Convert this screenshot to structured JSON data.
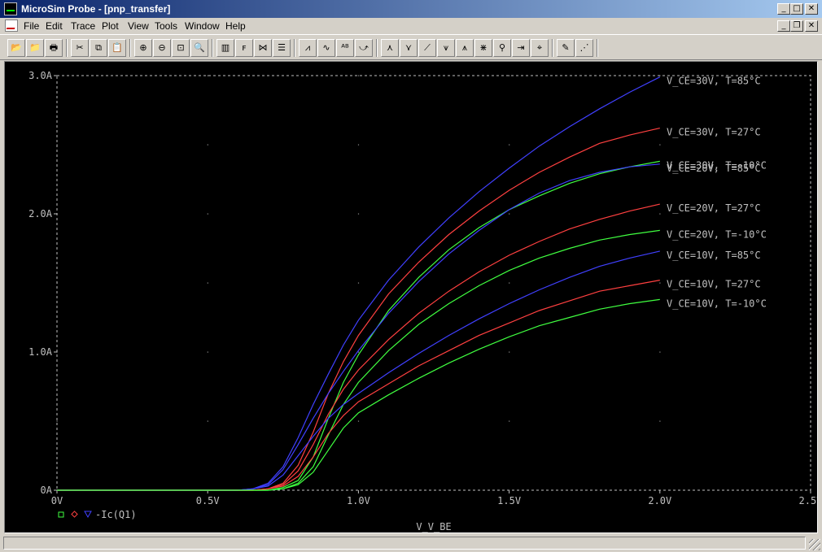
{
  "window": {
    "title": "MicroSim Probe - [pnp_transfer]",
    "controls": {
      "minimize": "_",
      "maximize": "□",
      "close": "✕",
      "restore": "❐"
    }
  },
  "menu": [
    "File",
    "Edit",
    "Trace",
    "Plot",
    "View",
    "Tools",
    "Window",
    "Help"
  ],
  "toolbar": {
    "groups": [
      [
        {
          "icon": "open-folder-icon",
          "glyph": "📂"
        },
        {
          "icon": "append-icon",
          "glyph": "📁"
        },
        {
          "icon": "print-icon",
          "glyph": "🖶"
        }
      ],
      [
        {
          "icon": "cut-icon",
          "glyph": "✂"
        },
        {
          "icon": "copy-icon",
          "glyph": "⧉"
        },
        {
          "icon": "paste-icon",
          "glyph": "📋"
        }
      ],
      [
        {
          "icon": "zoom-in-icon",
          "glyph": "⊕"
        },
        {
          "icon": "zoom-out-icon",
          "glyph": "⊖"
        },
        {
          "icon": "zoom-area-icon",
          "glyph": "⊡"
        },
        {
          "icon": "zoom-fit-icon",
          "glyph": "🔍"
        }
      ],
      [
        {
          "icon": "log-x-icon",
          "glyph": "▥"
        },
        {
          "icon": "fft-icon",
          "glyph": "ꜰ"
        },
        {
          "icon": "performance-icon",
          "glyph": "⋈"
        },
        {
          "icon": "list-icon",
          "glyph": "☰"
        }
      ],
      [
        {
          "icon": "add-trace-icon",
          "glyph": "⩘"
        },
        {
          "icon": "eval-goal-icon",
          "glyph": "∿"
        },
        {
          "icon": "mark-label-icon",
          "glyph": "ᴬᴮ"
        },
        {
          "icon": "cursor-icon",
          "glyph": "⤻"
        }
      ],
      [
        {
          "icon": "cursor-peak-icon",
          "glyph": "⋏"
        },
        {
          "icon": "cursor-trough-icon",
          "glyph": "⋎"
        },
        {
          "icon": "cursor-slope-icon",
          "glyph": "⟋"
        },
        {
          "icon": "cursor-min-icon",
          "glyph": "⩛"
        },
        {
          "icon": "cursor-max-icon",
          "glyph": "⩚"
        },
        {
          "icon": "cursor-point-icon",
          "glyph": "⋇"
        },
        {
          "icon": "cursor-search-icon",
          "glyph": "⚲"
        },
        {
          "icon": "cursor-next-icon",
          "glyph": "⇥"
        },
        {
          "icon": "cursor-mark-icon",
          "glyph": "⌖"
        }
      ],
      [
        {
          "icon": "text-label-icon",
          "glyph": "✎"
        },
        {
          "icon": "mark-data-icon",
          "glyph": "⋰"
        }
      ]
    ]
  },
  "plot": {
    "trace_legend": "-Ic(Q1)"
  },
  "chart_data": {
    "type": "line",
    "xlabel": "V_V_BE",
    "ylabel": "",
    "xlim": [
      0,
      2.5
    ],
    "ylim": [
      0,
      3.0
    ],
    "x_ticks": [
      0,
      0.5,
      1.0,
      1.5,
      2.0,
      2.5
    ],
    "x_tick_labels": [
      "0V",
      "0.5V",
      "1.0V",
      "1.5V",
      "2.0V",
      "2.5V"
    ],
    "y_ticks": [
      0,
      1.0,
      2.0,
      3.0
    ],
    "y_tick_labels": [
      "0A",
      "1.0A",
      "2.0A",
      "3.0A"
    ],
    "grid": "dotted",
    "x": [
      0,
      0.5,
      0.6,
      0.65,
      0.7,
      0.75,
      0.8,
      0.85,
      0.9,
      0.95,
      1.0,
      1.1,
      1.2,
      1.3,
      1.4,
      1.5,
      1.6,
      1.7,
      1.8,
      1.9,
      2.0
    ],
    "series": [
      {
        "name": "V_CE=30V, T=85°C",
        "color": "#4040ff",
        "values": [
          0,
          0,
          0,
          0.01,
          0.05,
          0.17,
          0.38,
          0.62,
          0.84,
          1.05,
          1.23,
          1.52,
          1.76,
          1.97,
          2.16,
          2.33,
          2.49,
          2.63,
          2.76,
          2.88,
          2.99
        ]
      },
      {
        "name": "V_CE=30V, T=27°C",
        "color": "#ff4040",
        "values": [
          0,
          0,
          0,
          0,
          0.01,
          0.05,
          0.18,
          0.42,
          0.7,
          0.93,
          1.12,
          1.42,
          1.65,
          1.85,
          2.02,
          2.17,
          2.3,
          2.41,
          2.51,
          2.57,
          2.62
        ]
      },
      {
        "name": "V_CE=30V, T=-10°C",
        "color": "#40ff40",
        "values": [
          0,
          0,
          0,
          0,
          0,
          0.02,
          0.07,
          0.24,
          0.52,
          0.78,
          0.98,
          1.3,
          1.54,
          1.74,
          1.9,
          2.03,
          2.13,
          2.22,
          2.29,
          2.34,
          2.38
        ]
      },
      {
        "name": "V_CE=20V, T=85°C",
        "color": "#4040ff",
        "values": [
          0,
          0,
          0,
          0.01,
          0.04,
          0.15,
          0.33,
          0.52,
          0.7,
          0.86,
          1.01,
          1.28,
          1.51,
          1.71,
          1.88,
          2.03,
          2.15,
          2.24,
          2.3,
          2.34,
          2.36
        ]
      },
      {
        "name": "V_CE=20V, T=27°C",
        "color": "#ff4040",
        "values": [
          0,
          0,
          0,
          0,
          0.01,
          0.04,
          0.14,
          0.33,
          0.55,
          0.73,
          0.87,
          1.09,
          1.28,
          1.44,
          1.58,
          1.7,
          1.8,
          1.89,
          1.96,
          2.02,
          2.07
        ]
      },
      {
        "name": "V_CE=20V, T=-10°C",
        "color": "#40ff40",
        "values": [
          0,
          0,
          0,
          0,
          0,
          0.01,
          0.05,
          0.17,
          0.4,
          0.62,
          0.78,
          1.01,
          1.2,
          1.35,
          1.48,
          1.59,
          1.68,
          1.75,
          1.81,
          1.85,
          1.88
        ]
      },
      {
        "name": "V_CE=10V, T=85°C",
        "color": "#4040ff",
        "values": [
          0,
          0,
          0,
          0.01,
          0.03,
          0.11,
          0.25,
          0.39,
          0.52,
          0.62,
          0.7,
          0.85,
          0.99,
          1.12,
          1.24,
          1.35,
          1.45,
          1.54,
          1.62,
          1.68,
          1.73
        ]
      },
      {
        "name": "V_CE=10V, T=27°C",
        "color": "#ff4040",
        "values": [
          0,
          0,
          0,
          0,
          0.01,
          0.03,
          0.1,
          0.24,
          0.41,
          0.54,
          0.64,
          0.77,
          0.9,
          1.01,
          1.12,
          1.21,
          1.3,
          1.37,
          1.44,
          1.48,
          1.52
        ]
      },
      {
        "name": "V_CE=10V, T=-10°C",
        "color": "#40ff40",
        "values": [
          0,
          0,
          0,
          0,
          0,
          0.01,
          0.04,
          0.13,
          0.29,
          0.45,
          0.56,
          0.69,
          0.81,
          0.92,
          1.02,
          1.11,
          1.19,
          1.25,
          1.31,
          1.35,
          1.38
        ]
      }
    ]
  }
}
